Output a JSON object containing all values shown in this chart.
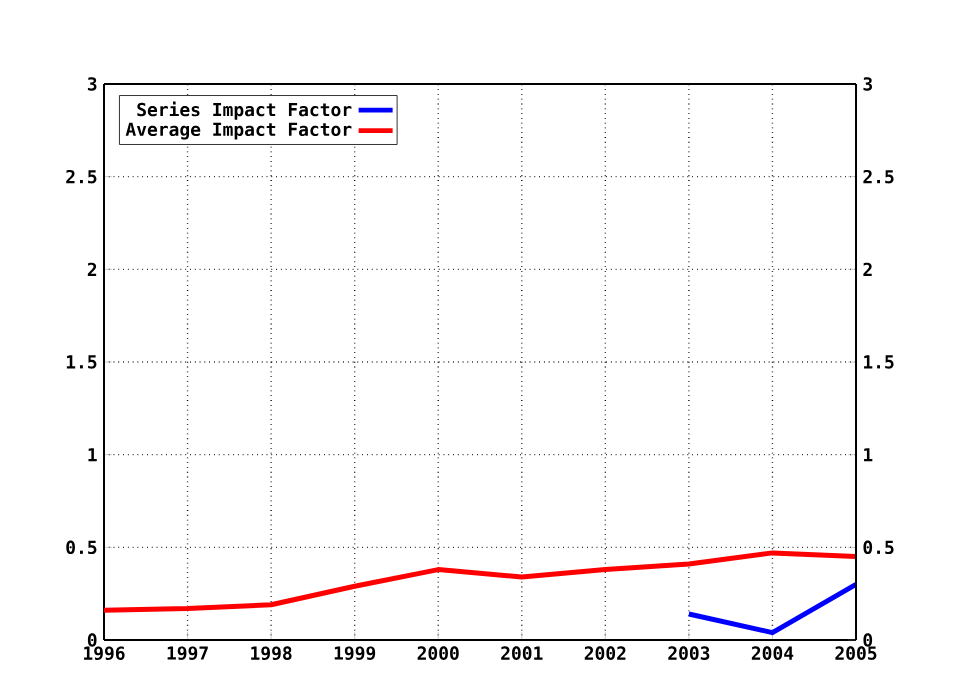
{
  "chart_data": {
    "type": "line",
    "x": [
      1996,
      1997,
      1998,
      1999,
      2000,
      2001,
      2002,
      2003,
      2004,
      2005
    ],
    "series": [
      {
        "name": "Series Impact Factor",
        "color": "#0000ff",
        "values": [
          null,
          null,
          null,
          null,
          null,
          null,
          null,
          0.14,
          0.04,
          0.3
        ]
      },
      {
        "name": "Average Impact Factor",
        "color": "#ff0000",
        "values": [
          0.16,
          0.17,
          0.19,
          0.29,
          0.38,
          0.34,
          0.38,
          0.41,
          0.47,
          0.45
        ]
      }
    ],
    "xlim": [
      1996,
      2005
    ],
    "xticks": [
      1996,
      1997,
      1998,
      1999,
      2000,
      2001,
      2002,
      2003,
      2004,
      2005
    ],
    "ylim": [
      0,
      3
    ],
    "yticks": [
      0,
      0.5,
      1,
      1.5,
      2,
      2.5,
      3
    ],
    "y2lim": [
      0,
      3
    ],
    "y2ticks": [
      0,
      0.5,
      1,
      1.5,
      2,
      2.5,
      3
    ],
    "grid": true,
    "legend": "top left",
    "line_style": "solid",
    "marker": "none"
  }
}
